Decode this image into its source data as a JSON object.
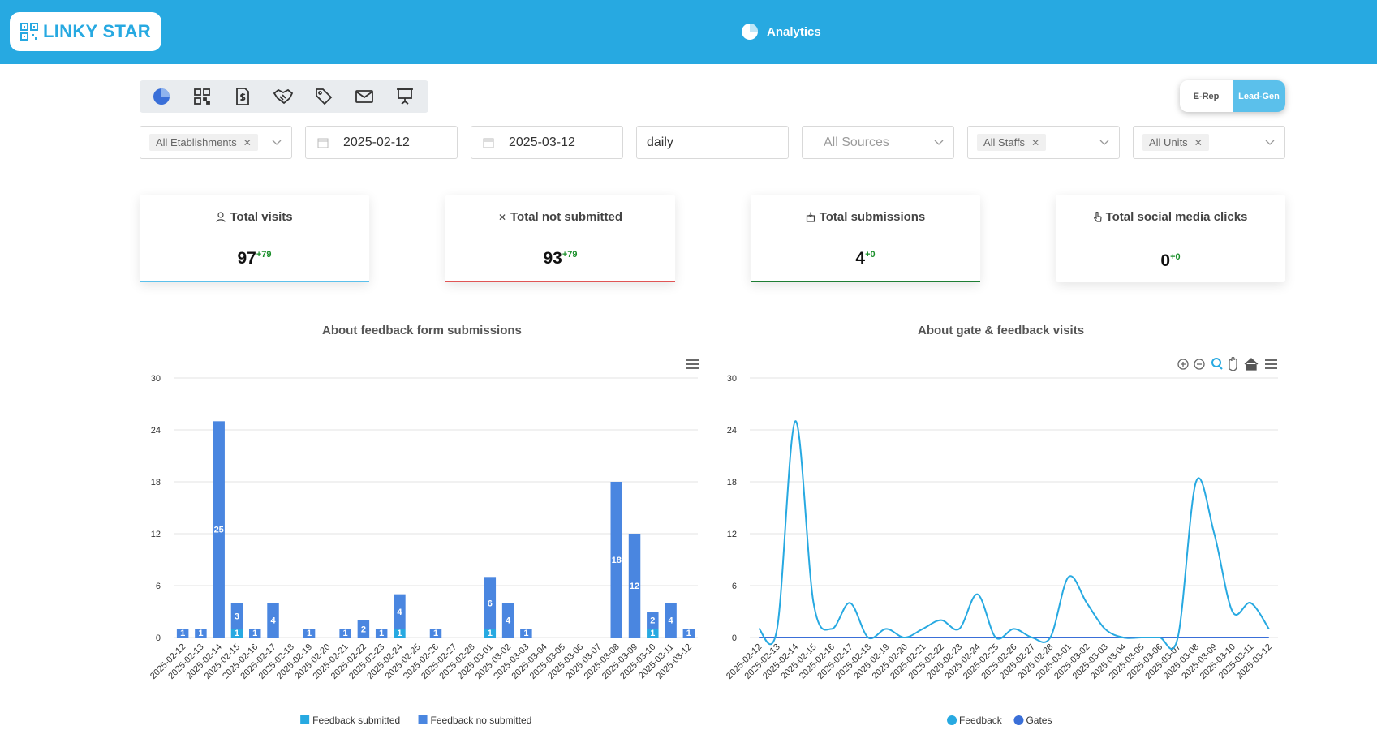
{
  "header": {
    "brand": "LINKY STAR",
    "title": "Analytics"
  },
  "toolbar": {
    "icons": [
      "pie-chart-icon",
      "qr-code-icon",
      "money-receipt-icon",
      "handshake-icon",
      "tag-icon",
      "mail-icon",
      "presentation-icon"
    ]
  },
  "mode_toggle": {
    "option_a": "E-Rep",
    "option_b": "Lead-Gen",
    "active": "Lead-Gen"
  },
  "filters": {
    "establishments_tag": "All Etablishments",
    "date_from": "2025-02-12",
    "date_to": "2025-03-12",
    "granularity": "daily",
    "sources_placeholder": "All Sources",
    "staffs_tag": "All Staffs",
    "units_tag": "All Units"
  },
  "cards": [
    {
      "title": "Total visits",
      "value": "97",
      "delta": "+79",
      "color": "#5bc0eb"
    },
    {
      "title": "Total not submitted",
      "value": "93",
      "delta": "+79",
      "color": "#e05555"
    },
    {
      "title": "Total submissions",
      "value": "4",
      "delta": "+0",
      "color": "#1e7e34"
    },
    {
      "title": "Total social media clicks",
      "value": "0",
      "delta": "+0",
      "color": "#ffffff"
    }
  ],
  "chart_data": [
    {
      "type": "bar",
      "title": "About feedback form submissions",
      "categories": [
        "2025-02-12",
        "2025-02-13",
        "2025-02-14",
        "2025-02-15",
        "2025-02-16",
        "2025-02-17",
        "2025-02-18",
        "2025-02-19",
        "2025-02-20",
        "2025-02-21",
        "2025-02-22",
        "2025-02-23",
        "2025-02-24",
        "2025-02-25",
        "2025-02-26",
        "2025-02-27",
        "2025-02-28",
        "2025-03-01",
        "2025-03-02",
        "2025-03-03",
        "2025-03-04",
        "2025-03-05",
        "2025-03-06",
        "2025-03-07",
        "2025-03-08",
        "2025-03-09",
        "2025-03-10",
        "2025-03-11",
        "2025-03-12"
      ],
      "stacked": true,
      "series": [
        {
          "name": "Feedback submitted",
          "color": "#27a9e1",
          "values": [
            0,
            0,
            0,
            1,
            0,
            0,
            0,
            0,
            0,
            0,
            0,
            0,
            1,
            0,
            0,
            0,
            0,
            1,
            0,
            0,
            0,
            0,
            0,
            0,
            0,
            0,
            1,
            0,
            0
          ]
        },
        {
          "name": "Feedback no submitted",
          "color": "#4a86e0",
          "values": [
            1,
            1,
            25,
            3,
            1,
            4,
            0,
            1,
            0,
            1,
            2,
            1,
            4,
            0,
            1,
            0,
            0,
            6,
            4,
            1,
            0,
            0,
            0,
            0,
            18,
            12,
            2,
            4,
            1
          ]
        }
      ],
      "ylim": [
        0,
        30
      ],
      "yticks": [
        0,
        6,
        12,
        18,
        24,
        30
      ],
      "legend": "bottom"
    },
    {
      "type": "line",
      "title": "About gate & feedback visits",
      "categories": [
        "2025-02-12",
        "2025-02-13",
        "2025-02-14",
        "2025-02-15",
        "2025-02-16",
        "2025-02-17",
        "2025-02-18",
        "2025-02-19",
        "2025-02-20",
        "2025-02-21",
        "2025-02-22",
        "2025-02-23",
        "2025-02-24",
        "2025-02-25",
        "2025-02-26",
        "2025-02-27",
        "2025-02-28",
        "2025-03-01",
        "2025-03-02",
        "2025-03-03",
        "2025-03-04",
        "2025-03-05",
        "2025-03-06",
        "2025-03-07",
        "2025-03-08",
        "2025-03-09",
        "2025-03-10",
        "2025-03-11",
        "2025-03-12"
      ],
      "series": [
        {
          "name": "Feedback",
          "color": "#27a9e1",
          "values": [
            1,
            1,
            25,
            4,
            1,
            4,
            0,
            1,
            0,
            1,
            2,
            1,
            5,
            0,
            1,
            0,
            0,
            7,
            4,
            1,
            0,
            0,
            0,
            0,
            18,
            12,
            3,
            4,
            1
          ]
        },
        {
          "name": "Gates",
          "color": "#3a6fd8",
          "values": [
            0,
            0,
            0,
            0,
            0,
            0,
            0,
            0,
            0,
            0,
            0,
            0,
            0,
            0,
            0,
            0,
            0,
            0,
            0,
            0,
            0,
            0,
            0,
            0,
            0,
            0,
            0,
            0,
            0
          ]
        }
      ],
      "ylim": [
        0,
        30
      ],
      "yticks": [
        0,
        6,
        12,
        18,
        24,
        30
      ],
      "legend": "bottom"
    }
  ]
}
